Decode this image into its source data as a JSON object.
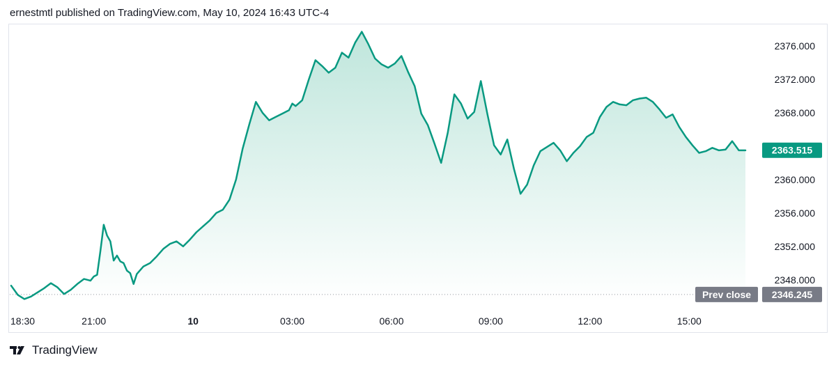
{
  "header": {
    "publish_line": "ernestmtl published on TradingView.com, May 10, 2024 16:43 UTC-4"
  },
  "footer": {
    "brand": "TradingView",
    "logo_icon": "tradingview-logo-icon"
  },
  "colors": {
    "line": "#089981",
    "area_top": "#bfe6dc",
    "area_bottom": "#ffffff",
    "last_price_badge": "#089981",
    "prev_close_badge": "#787b86",
    "prev_close_line": "#9598a1"
  },
  "chart_data": {
    "type": "area",
    "title": "",
    "xlabel": "",
    "ylabel": "",
    "ylim": [
      2345.4,
      2378.5
    ],
    "y_ticks": [
      "2376.000",
      "2372.000",
      "2368.000",
      "2364.000",
      "2360.000",
      "2356.000",
      "2352.000",
      "2348.000"
    ],
    "y_tick_values": [
      2376,
      2372,
      2368,
      2364,
      2360,
      2356,
      2352,
      2348
    ],
    "x_ticks": [
      "18:30",
      "21:00",
      "10",
      "03:00",
      "06:00",
      "09:00",
      "12:00",
      "15:00"
    ],
    "x_tick_hours": [
      0,
      2.5,
      5.5,
      8.5,
      11.5,
      14.5,
      17.5,
      20.5
    ],
    "x_tick_bold": [
      false,
      false,
      true,
      false,
      false,
      false,
      false,
      false
    ],
    "x_range_hours": [
      0,
      22.2
    ],
    "x_unit": "hours since 18:30",
    "last_price": {
      "value": 2363.515,
      "label": "2363.515"
    },
    "prev_close": {
      "value": 2346.245,
      "label": "2346.245",
      "title": "Prev close"
    },
    "series": [
      {
        "x": [
          0,
          0.2,
          0.4,
          0.6,
          0.8,
          1.0,
          1.2,
          1.4,
          1.6,
          1.8,
          2.0,
          2.2,
          2.4,
          2.5,
          2.6,
          2.7,
          2.8,
          2.9,
          3.0,
          3.1,
          3.2,
          3.3,
          3.4,
          3.5,
          3.6,
          3.7,
          3.8,
          4.0,
          4.2,
          4.4,
          4.6,
          4.8,
          5.0,
          5.2,
          5.4,
          5.6,
          5.8,
          6.0,
          6.2,
          6.4,
          6.6,
          6.8,
          7.0,
          7.2,
          7.4,
          7.6,
          7.8,
          8.0,
          8.2,
          8.4,
          8.5,
          8.6,
          8.8,
          9.0,
          9.2,
          9.4,
          9.6,
          9.8,
          10.0,
          10.2,
          10.4,
          10.6,
          10.8,
          11.0,
          11.2,
          11.4,
          11.6,
          11.8,
          12.0,
          12.2,
          12.4,
          12.6,
          12.8,
          13.0,
          13.2,
          13.4,
          13.6,
          13.8,
          14.0,
          14.2,
          14.4,
          14.6,
          14.8,
          15.0,
          15.2,
          15.4,
          15.6,
          15.8,
          16.0,
          16.2,
          16.4,
          16.6,
          16.8,
          17.0,
          17.2,
          17.4,
          17.6,
          17.8,
          18.0,
          18.2,
          18.4,
          18.6,
          18.8,
          19.0,
          19.2,
          19.4,
          19.6,
          19.8,
          20.0,
          20.2,
          20.4,
          20.6,
          20.8,
          21.0,
          21.2,
          21.4,
          21.6,
          21.8,
          22.0,
          22.2
        ],
        "values": [
          2347.3,
          2346.2,
          2345.7,
          2346.0,
          2346.5,
          2347.0,
          2347.6,
          2347.1,
          2346.3,
          2346.8,
          2347.5,
          2348.1,
          2347.9,
          2348.4,
          2348.6,
          2351.5,
          2354.6,
          2353.3,
          2352.6,
          2350.3,
          2350.9,
          2350.2,
          2350.0,
          2349.1,
          2348.8,
          2347.5,
          2348.7,
          2349.6,
          2350.0,
          2350.8,
          2351.7,
          2352.3,
          2352.6,
          2352.0,
          2352.8,
          2353.7,
          2354.4,
          2355.1,
          2356.0,
          2356.4,
          2357.6,
          2360.0,
          2363.7,
          2366.6,
          2369.3,
          2368.0,
          2367.1,
          2367.5,
          2367.9,
          2368.3,
          2369.1,
          2368.8,
          2369.5,
          2372.0,
          2374.3,
          2373.6,
          2372.8,
          2373.4,
          2375.2,
          2374.6,
          2376.4,
          2377.7,
          2376.2,
          2374.5,
          2373.8,
          2373.4,
          2373.9,
          2374.8,
          2372.9,
          2371.2,
          2367.9,
          2366.5,
          2364.3,
          2362.0,
          2365.6,
          2370.2,
          2369.1,
          2367.3,
          2368.1,
          2371.8,
          2367.8,
          2364.1,
          2363.0,
          2364.8,
          2361.3,
          2358.3,
          2359.4,
          2361.7,
          2363.4,
          2363.9,
          2364.4,
          2363.5,
          2362.2,
          2363.2,
          2364.0,
          2365.1,
          2365.6,
          2367.5,
          2368.7,
          2369.3,
          2369.0,
          2368.9,
          2369.5,
          2369.7,
          2369.8,
          2369.3,
          2368.4,
          2367.4,
          2367.8,
          2366.3,
          2365.1,
          2364.1,
          2363.2,
          2363.4,
          2363.8,
          2363.5,
          2363.6,
          2364.6,
          2363.5,
          2363.5
        ]
      }
    ]
  }
}
